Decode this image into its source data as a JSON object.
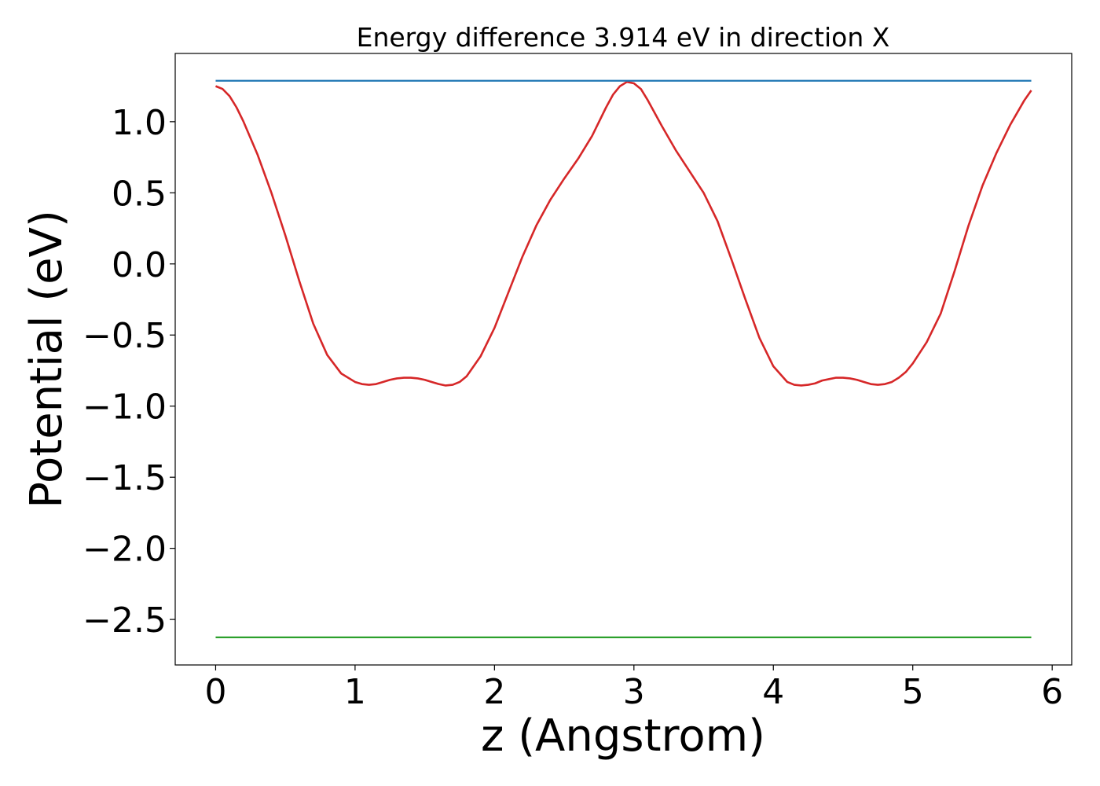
{
  "chart_data": {
    "type": "line",
    "title": "Energy difference 3.914 eV in direction X",
    "xlabel": "z (Angstrom)",
    "ylabel": "Potential (eV)",
    "xlim": [
      -0.29,
      6.14
    ],
    "ylim": [
      -2.82,
      1.48
    ],
    "xticks": [
      0,
      1,
      2,
      3,
      4,
      5,
      6
    ],
    "xtick_labels": [
      "0",
      "1",
      "2",
      "3",
      "4",
      "5",
      "6"
    ],
    "yticks": [
      1.0,
      0.5,
      0.0,
      -0.5,
      -1.0,
      -1.5,
      -2.0,
      -2.5
    ],
    "ytick_labels": [
      "1.0",
      "0.5",
      "0.0",
      "−0.5",
      "−1.0",
      "−1.5",
      "−2.0",
      "−2.5"
    ],
    "grid": false,
    "legend": "none",
    "series": [
      {
        "color": "#d62728",
        "x": [
          0.0,
          0.05,
          0.1,
          0.15,
          0.2,
          0.3,
          0.4,
          0.5,
          0.6,
          0.7,
          0.8,
          0.9,
          1.0,
          1.05,
          1.1,
          1.15,
          1.2,
          1.25,
          1.3,
          1.35,
          1.4,
          1.45,
          1.5,
          1.55,
          1.6,
          1.65,
          1.7,
          1.75,
          1.8,
          1.9,
          2.0,
          2.1,
          2.2,
          2.3,
          2.4,
          2.5,
          2.6,
          2.7,
          2.8,
          2.85,
          2.9,
          2.95,
          3.0,
          3.05,
          3.1,
          3.2,
          3.3,
          3.4,
          3.5,
          3.6,
          3.7,
          3.8,
          3.9,
          4.0,
          4.1,
          4.15,
          4.2,
          4.25,
          4.3,
          4.35,
          4.4,
          4.45,
          4.5,
          4.55,
          4.6,
          4.65,
          4.7,
          4.75,
          4.8,
          4.85,
          4.9,
          4.95,
          5.0,
          5.1,
          5.2,
          5.3,
          5.4,
          5.5,
          5.6,
          5.7,
          5.8,
          5.85
        ],
        "y": [
          1.25,
          1.23,
          1.18,
          1.1,
          1.0,
          0.77,
          0.5,
          0.2,
          -0.12,
          -0.42,
          -0.64,
          -0.77,
          -0.83,
          -0.845,
          -0.85,
          -0.845,
          -0.83,
          -0.815,
          -0.805,
          -0.8,
          -0.8,
          -0.805,
          -0.815,
          -0.83,
          -0.845,
          -0.855,
          -0.85,
          -0.83,
          -0.79,
          -0.65,
          -0.45,
          -0.2,
          0.05,
          0.27,
          0.45,
          0.6,
          0.74,
          0.9,
          1.1,
          1.19,
          1.25,
          1.28,
          1.27,
          1.23,
          1.15,
          0.97,
          0.8,
          0.65,
          0.5,
          0.3,
          0.03,
          -0.25,
          -0.52,
          -0.72,
          -0.83,
          -0.85,
          -0.855,
          -0.85,
          -0.84,
          -0.82,
          -0.81,
          -0.8,
          -0.8,
          -0.805,
          -0.815,
          -0.83,
          -0.845,
          -0.85,
          -0.845,
          -0.83,
          -0.8,
          -0.76,
          -0.7,
          -0.55,
          -0.35,
          -0.05,
          0.27,
          0.55,
          0.78,
          0.98,
          1.15,
          1.22
        ]
      },
      {
        "color": "#1f77b4",
        "x": [
          0.0,
          5.85
        ],
        "y": [
          1.288,
          1.288
        ]
      },
      {
        "color": "#2ca02c",
        "x": [
          0.0,
          5.85
        ],
        "y": [
          -2.626,
          -2.626
        ]
      }
    ]
  }
}
